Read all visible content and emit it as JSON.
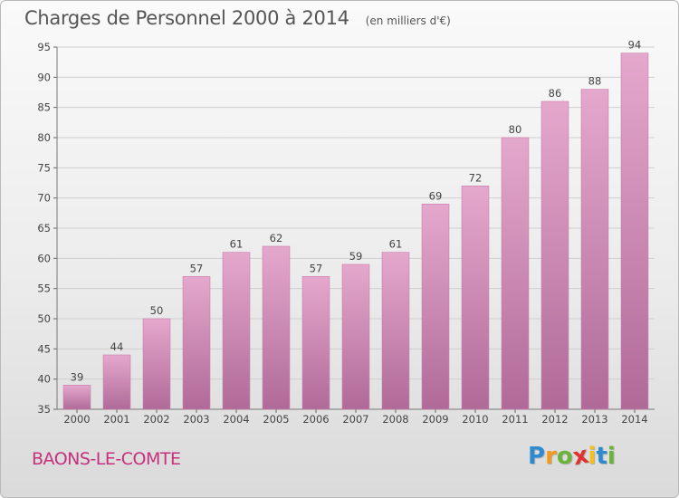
{
  "title": "Charges de Personnel 2000 à 2014",
  "subtitle": "(en milliers d'€)",
  "commune": "BAONS-LE-COMTE",
  "logo": {
    "letters": [
      "P",
      "r",
      "o",
      "x",
      "i",
      "t",
      "i"
    ],
    "colors": [
      "#2e8bd0",
      "#f39a1c",
      "#6ab43a",
      "#e2312f",
      "#f3c01c",
      "#2e8bd0",
      "#6ab43a"
    ]
  },
  "colors": {
    "bar_top": "#e5a8cd",
    "bar_bottom": "#b06a98",
    "bar_edge": "#c97aab",
    "grid": "#cfcfcf"
  },
  "chart_data": {
    "type": "bar",
    "categories": [
      "2000",
      "2001",
      "2002",
      "2003",
      "2004",
      "2005",
      "2006",
      "2007",
      "2008",
      "2009",
      "2010",
      "2011",
      "2012",
      "2013",
      "2014"
    ],
    "values": [
      39,
      44,
      50,
      57,
      61,
      62,
      57,
      59,
      61,
      69,
      72,
      80,
      86,
      88,
      94
    ],
    "ylim": [
      35,
      95
    ],
    "yticks": [
      35,
      40,
      45,
      50,
      55,
      60,
      65,
      70,
      75,
      80,
      85,
      90,
      95
    ],
    "grid": true
  }
}
